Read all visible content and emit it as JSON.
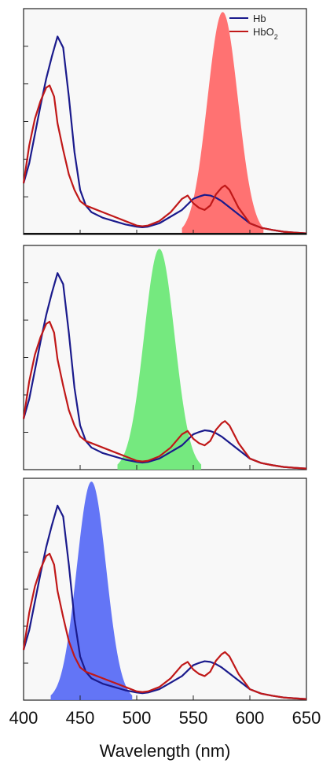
{
  "chart_data": [
    {
      "type": "line",
      "xlim": [
        400,
        650
      ],
      "ylim": [
        0,
        1
      ],
      "xlabel": "",
      "ylabel": "",
      "legend_position": "top-right",
      "legend": [
        {
          "label": "Hb",
          "color": "#1a1a8c"
        },
        {
          "label": "HbO",
          "sub": "2",
          "color": "#c01818"
        }
      ],
      "band": {
        "color": "#ff6a6a",
        "center": 576,
        "sigma": 13.5,
        "peak": 1.0,
        "range": [
          540,
          612
        ]
      },
      "series": [
        {
          "name": "Hb",
          "color": "#1a1a8c",
          "x": [
            400,
            405,
            410,
            415,
            420,
            425,
            430,
            435,
            440,
            445,
            450,
            455,
            460,
            470,
            480,
            490,
            500,
            505,
            510,
            520,
            530,
            540,
            550,
            555,
            560,
            565,
            570,
            575,
            580,
            590,
            600,
            610,
            620,
            630,
            640,
            650
          ],
          "y": [
            0.23,
            0.32,
            0.45,
            0.58,
            0.7,
            0.8,
            0.89,
            0.84,
            0.62,
            0.37,
            0.2,
            0.13,
            0.1,
            0.075,
            0.06,
            0.045,
            0.035,
            0.032,
            0.035,
            0.05,
            0.08,
            0.11,
            0.16,
            0.17,
            0.178,
            0.175,
            0.165,
            0.15,
            0.13,
            0.09,
            0.05,
            0.03,
            0.02,
            0.012,
            0.008,
            0.005
          ]
        },
        {
          "name": "HbO",
          "color": "#c01818",
          "x": [
            400,
            405,
            410,
            415,
            420,
            423,
            427,
            430,
            435,
            440,
            445,
            450,
            455,
            460,
            470,
            480,
            490,
            500,
            505,
            510,
            520,
            530,
            540,
            545,
            550,
            555,
            560,
            565,
            570,
            575,
            578,
            582,
            590,
            600,
            610,
            620,
            630,
            640,
            650
          ],
          "y": [
            0.23,
            0.4,
            0.52,
            0.6,
            0.66,
            0.67,
            0.62,
            0.5,
            0.38,
            0.27,
            0.2,
            0.15,
            0.13,
            0.12,
            0.1,
            0.08,
            0.06,
            0.04,
            0.037,
            0.04,
            0.06,
            0.1,
            0.16,
            0.175,
            0.14,
            0.12,
            0.11,
            0.13,
            0.18,
            0.21,
            0.22,
            0.2,
            0.12,
            0.05,
            0.03,
            0.02,
            0.012,
            0.008,
            0.005
          ]
        }
      ]
    },
    {
      "type": "line",
      "xlim": [
        400,
        650
      ],
      "ylim": [
        0,
        1
      ],
      "xlabel": "",
      "ylabel": "",
      "band": {
        "color": "#6ee878",
        "center": 520,
        "sigma": 13.5,
        "peak": 1.0,
        "range": [
          483,
          557
        ]
      },
      "series": [
        {
          "name": "Hb",
          "color": "#1a1a8c",
          "x": [
            400,
            405,
            410,
            415,
            420,
            425,
            430,
            435,
            440,
            445,
            450,
            455,
            460,
            470,
            480,
            490,
            500,
            505,
            510,
            520,
            530,
            540,
            550,
            555,
            560,
            565,
            570,
            575,
            580,
            590,
            600,
            610,
            620,
            630,
            640,
            650
          ],
          "y": [
            0.23,
            0.32,
            0.45,
            0.58,
            0.7,
            0.8,
            0.89,
            0.84,
            0.62,
            0.37,
            0.2,
            0.13,
            0.1,
            0.075,
            0.06,
            0.045,
            0.035,
            0.032,
            0.035,
            0.05,
            0.08,
            0.11,
            0.16,
            0.17,
            0.178,
            0.175,
            0.165,
            0.15,
            0.13,
            0.09,
            0.05,
            0.03,
            0.02,
            0.012,
            0.008,
            0.005
          ]
        },
        {
          "name": "HbO",
          "color": "#c01818",
          "x": [
            400,
            405,
            410,
            415,
            420,
            423,
            427,
            430,
            435,
            440,
            445,
            450,
            455,
            460,
            470,
            480,
            490,
            500,
            505,
            510,
            520,
            530,
            540,
            545,
            550,
            555,
            560,
            565,
            570,
            575,
            578,
            582,
            590,
            600,
            610,
            620,
            630,
            640,
            650
          ],
          "y": [
            0.23,
            0.4,
            0.52,
            0.6,
            0.66,
            0.67,
            0.62,
            0.5,
            0.38,
            0.27,
            0.2,
            0.15,
            0.13,
            0.12,
            0.1,
            0.08,
            0.06,
            0.04,
            0.037,
            0.04,
            0.06,
            0.1,
            0.16,
            0.175,
            0.14,
            0.12,
            0.11,
            0.13,
            0.18,
            0.21,
            0.22,
            0.2,
            0.12,
            0.05,
            0.03,
            0.02,
            0.012,
            0.008,
            0.005
          ]
        }
      ]
    },
    {
      "type": "line",
      "xlim": [
        400,
        650
      ],
      "ylim": [
        0,
        1
      ],
      "xlabel": "Wavelength (nm)",
      "ylabel": "",
      "xticks": [
        400,
        450,
        500,
        550,
        600,
        650
      ],
      "band": {
        "color": "#5b6ef5",
        "center": 460,
        "sigma": 13.0,
        "peak": 1.0,
        "range": [
          424,
          496
        ]
      },
      "series": [
        {
          "name": "Hb",
          "color": "#1a1a8c",
          "x": [
            400,
            405,
            410,
            415,
            420,
            425,
            430,
            435,
            440,
            445,
            450,
            455,
            460,
            470,
            480,
            490,
            500,
            505,
            510,
            520,
            530,
            540,
            550,
            555,
            560,
            565,
            570,
            575,
            580,
            590,
            600,
            610,
            620,
            630,
            640,
            650
          ],
          "y": [
            0.23,
            0.32,
            0.45,
            0.58,
            0.7,
            0.8,
            0.89,
            0.84,
            0.62,
            0.37,
            0.2,
            0.13,
            0.1,
            0.075,
            0.06,
            0.045,
            0.035,
            0.032,
            0.035,
            0.05,
            0.08,
            0.11,
            0.16,
            0.17,
            0.178,
            0.175,
            0.165,
            0.15,
            0.13,
            0.09,
            0.05,
            0.03,
            0.02,
            0.012,
            0.008,
            0.005
          ]
        },
        {
          "name": "HbO",
          "color": "#c01818",
          "x": [
            400,
            405,
            410,
            415,
            420,
            423,
            427,
            430,
            435,
            440,
            445,
            450,
            455,
            460,
            470,
            480,
            490,
            500,
            505,
            510,
            520,
            530,
            540,
            545,
            550,
            555,
            560,
            565,
            570,
            575,
            578,
            582,
            590,
            600,
            610,
            620,
            630,
            640,
            650
          ],
          "y": [
            0.23,
            0.4,
            0.52,
            0.6,
            0.66,
            0.67,
            0.62,
            0.5,
            0.38,
            0.27,
            0.2,
            0.15,
            0.13,
            0.12,
            0.1,
            0.08,
            0.06,
            0.04,
            0.037,
            0.04,
            0.06,
            0.1,
            0.16,
            0.175,
            0.14,
            0.12,
            0.11,
            0.13,
            0.18,
            0.21,
            0.22,
            0.2,
            0.12,
            0.05,
            0.03,
            0.02,
            0.012,
            0.008,
            0.005
          ]
        }
      ]
    }
  ]
}
